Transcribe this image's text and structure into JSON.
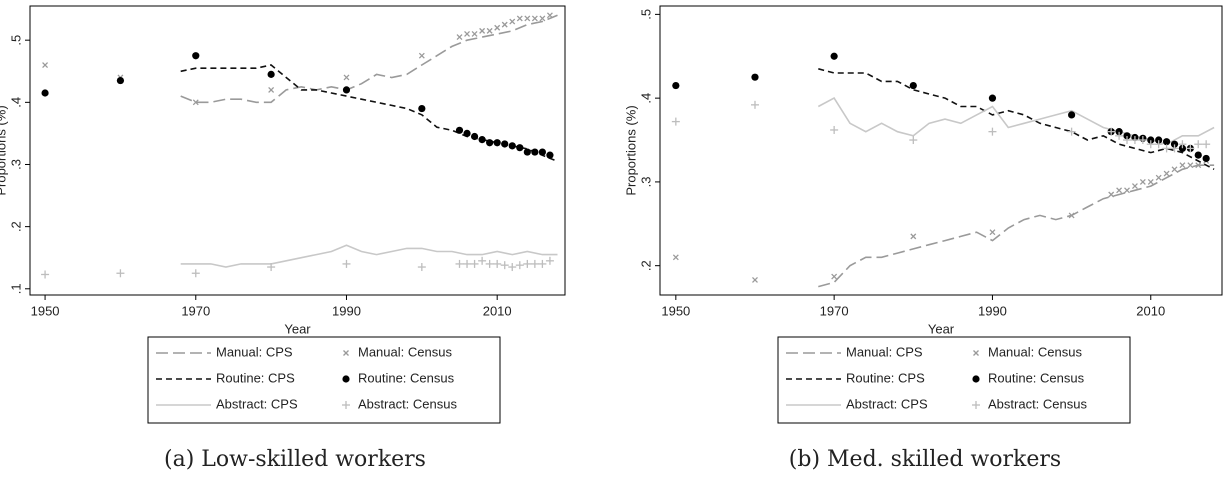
{
  "chart_data": [
    {
      "type": "line",
      "caption": "(a) Low-skilled workers",
      "xlabel": "Year",
      "ylabel": "Proportions (%)",
      "xlim": [
        1948,
        2019
      ],
      "xticks": [
        1950,
        1970,
        1990,
        2010
      ],
      "ylim": [
        0.09,
        0.555
      ],
      "yticks": [
        {
          "value": 0.1,
          "label": ".1"
        },
        {
          "value": 0.2,
          "label": ".2"
        },
        {
          "value": 0.3,
          "label": ".3"
        },
        {
          "value": 0.4,
          "label": ".4"
        },
        {
          "value": 0.5,
          "label": ".5"
        }
      ],
      "series": [
        {
          "name": "Manual: CPS",
          "color": "#9a9a9a",
          "dash": "long",
          "x": [
            1968,
            1970,
            1972,
            1974,
            1976,
            1978,
            1980,
            1982,
            1984,
            1986,
            1988,
            1990,
            1992,
            1994,
            1996,
            1998,
            2000,
            2002,
            2004,
            2006,
            2008,
            2010,
            2012,
            2014,
            2016,
            2018
          ],
          "values": [
            0.41,
            0.4,
            0.4,
            0.405,
            0.405,
            0.4,
            0.4,
            0.42,
            0.425,
            0.42,
            0.425,
            0.42,
            0.43,
            0.445,
            0.44,
            0.445,
            0.46,
            0.475,
            0.49,
            0.5,
            0.505,
            0.51,
            0.515,
            0.525,
            0.53,
            0.54
          ]
        },
        {
          "name": "Routine: CPS",
          "color": "#111111",
          "dash": "short",
          "x": [
            1968,
            1970,
            1972,
            1974,
            1976,
            1978,
            1980,
            1982,
            1984,
            1986,
            1988,
            1990,
            1992,
            1994,
            1996,
            1998,
            2000,
            2002,
            2004,
            2006,
            2008,
            2010,
            2012,
            2014,
            2016,
            2018
          ],
          "values": [
            0.45,
            0.455,
            0.455,
            0.455,
            0.455,
            0.455,
            0.46,
            0.44,
            0.42,
            0.42,
            0.415,
            0.41,
            0.405,
            0.4,
            0.395,
            0.39,
            0.38,
            0.36,
            0.355,
            0.345,
            0.34,
            0.335,
            0.33,
            0.325,
            0.315,
            0.305
          ]
        },
        {
          "name": "Abstract: CPS",
          "color": "#c8c8c8",
          "dash": "solid",
          "x": [
            1968,
            1970,
            1972,
            1974,
            1976,
            1978,
            1980,
            1982,
            1984,
            1986,
            1988,
            1990,
            1992,
            1994,
            1996,
            1998,
            2000,
            2002,
            2004,
            2006,
            2008,
            2010,
            2012,
            2014,
            2016,
            2018
          ],
          "values": [
            0.14,
            0.14,
            0.14,
            0.135,
            0.14,
            0.14,
            0.14,
            0.145,
            0.15,
            0.155,
            0.16,
            0.17,
            0.16,
            0.155,
            0.16,
            0.165,
            0.165,
            0.16,
            0.16,
            0.155,
            0.155,
            0.16,
            0.155,
            0.16,
            0.155,
            0.155
          ]
        },
        {
          "name": "Manual: Census",
          "color": "#9a9a9a",
          "marker": "x",
          "x": [
            1950,
            1960,
            1970,
            1980,
            1990,
            2000,
            2005,
            2006,
            2007,
            2008,
            2009,
            2010,
            2011,
            2012,
            2013,
            2014,
            2015,
            2016,
            2017
          ],
          "values": [
            0.46,
            0.44,
            0.4,
            0.42,
            0.44,
            0.475,
            0.505,
            0.51,
            0.51,
            0.515,
            0.515,
            0.52,
            0.525,
            0.53,
            0.535,
            0.535,
            0.535,
            0.535,
            0.54
          ]
        },
        {
          "name": "Routine: Census",
          "color": "#000000",
          "marker": "circle",
          "x": [
            1950,
            1960,
            1970,
            1980,
            1990,
            2000,
            2005,
            2006,
            2007,
            2008,
            2009,
            2010,
            2011,
            2012,
            2013,
            2014,
            2015,
            2016,
            2017
          ],
          "values": [
            0.415,
            0.435,
            0.475,
            0.445,
            0.42,
            0.39,
            0.355,
            0.35,
            0.345,
            0.34,
            0.335,
            0.335,
            0.333,
            0.33,
            0.327,
            0.32,
            0.32,
            0.32,
            0.315
          ]
        },
        {
          "name": "Abstract: Census",
          "color": "#bdbdbd",
          "marker": "plus",
          "x": [
            1950,
            1960,
            1970,
            1980,
            1990,
            2000,
            2005,
            2006,
            2007,
            2008,
            2009,
            2010,
            2011,
            2012,
            2013,
            2014,
            2015,
            2016,
            2017
          ],
          "values": [
            0.123,
            0.125,
            0.125,
            0.135,
            0.14,
            0.135,
            0.14,
            0.14,
            0.14,
            0.145,
            0.14,
            0.14,
            0.138,
            0.135,
            0.138,
            0.14,
            0.14,
            0.14,
            0.145
          ]
        }
      ]
    },
    {
      "type": "line",
      "caption": "(b) Med. skilled workers",
      "xlabel": "Year",
      "ylabel": "Proportions (%)",
      "xlim": [
        1948,
        2019
      ],
      "xticks": [
        1950,
        1970,
        1990,
        2010
      ],
      "ylim": [
        0.165,
        0.51
      ],
      "yticks": [
        {
          "value": 0.2,
          "label": ".2"
        },
        {
          "value": 0.3,
          "label": ".3"
        },
        {
          "value": 0.4,
          "label": ".4"
        },
        {
          "value": 0.5,
          "label": ".5"
        }
      ],
      "series": [
        {
          "name": "Manual: CPS",
          "color": "#9a9a9a",
          "dash": "long",
          "x": [
            1968,
            1970,
            1972,
            1974,
            1976,
            1978,
            1980,
            1982,
            1984,
            1986,
            1988,
            1990,
            1992,
            1994,
            1996,
            1998,
            2000,
            2002,
            2004,
            2006,
            2008,
            2010,
            2012,
            2014,
            2016,
            2018
          ],
          "values": [
            0.175,
            0.18,
            0.2,
            0.21,
            0.21,
            0.215,
            0.22,
            0.225,
            0.23,
            0.235,
            0.24,
            0.23,
            0.245,
            0.255,
            0.26,
            0.255,
            0.26,
            0.27,
            0.28,
            0.285,
            0.29,
            0.295,
            0.305,
            0.315,
            0.32,
            0.32
          ]
        },
        {
          "name": "Routine: CPS",
          "color": "#111111",
          "dash": "short",
          "x": [
            1968,
            1970,
            1972,
            1974,
            1976,
            1978,
            1980,
            1982,
            1984,
            1986,
            1988,
            1990,
            1992,
            1994,
            1996,
            1998,
            2000,
            2002,
            2004,
            2006,
            2008,
            2010,
            2012,
            2014,
            2016,
            2018
          ],
          "values": [
            0.435,
            0.43,
            0.43,
            0.43,
            0.42,
            0.42,
            0.41,
            0.405,
            0.4,
            0.39,
            0.39,
            0.38,
            0.385,
            0.38,
            0.37,
            0.365,
            0.36,
            0.35,
            0.355,
            0.345,
            0.34,
            0.335,
            0.34,
            0.335,
            0.325,
            0.315
          ]
        },
        {
          "name": "Abstract: CPS",
          "color": "#c8c8c8",
          "dash": "solid",
          "x": [
            1968,
            1970,
            1972,
            1974,
            1976,
            1978,
            1980,
            1982,
            1984,
            1986,
            1988,
            1990,
            1992,
            1994,
            1996,
            1998,
            2000,
            2002,
            2004,
            2006,
            2008,
            2010,
            2012,
            2014,
            2016,
            2018
          ],
          "values": [
            0.39,
            0.4,
            0.37,
            0.36,
            0.37,
            0.36,
            0.355,
            0.37,
            0.375,
            0.37,
            0.38,
            0.39,
            0.365,
            0.37,
            0.375,
            0.38,
            0.385,
            0.375,
            0.365,
            0.36,
            0.355,
            0.35,
            0.345,
            0.355,
            0.355,
            0.365
          ]
        },
        {
          "name": "Manual: Census",
          "color": "#9a9a9a",
          "marker": "x",
          "x": [
            1950,
            1960,
            1970,
            1980,
            1990,
            2000,
            2005,
            2006,
            2007,
            2008,
            2009,
            2010,
            2011,
            2012,
            2013,
            2014,
            2015,
            2016,
            2017
          ],
          "values": [
            0.21,
            0.183,
            0.187,
            0.235,
            0.24,
            0.26,
            0.285,
            0.29,
            0.29,
            0.295,
            0.3,
            0.3,
            0.305,
            0.31,
            0.315,
            0.32,
            0.32,
            0.32,
            0.325
          ]
        },
        {
          "name": "Routine: Census",
          "color": "#000000",
          "marker": "circle",
          "x": [
            1950,
            1960,
            1970,
            1980,
            1990,
            2000,
            2005,
            2006,
            2007,
            2008,
            2009,
            2010,
            2011,
            2012,
            2013,
            2014,
            2015,
            2016,
            2017
          ],
          "values": [
            0.415,
            0.425,
            0.45,
            0.415,
            0.4,
            0.38,
            0.36,
            0.36,
            0.355,
            0.353,
            0.352,
            0.35,
            0.35,
            0.348,
            0.345,
            0.34,
            0.34,
            0.332,
            0.328
          ]
        },
        {
          "name": "Abstract: Census",
          "color": "#bdbdbd",
          "marker": "plus",
          "x": [
            1950,
            1960,
            1970,
            1980,
            1990,
            2000,
            2005,
            2006,
            2007,
            2008,
            2009,
            2010,
            2011,
            2012,
            2013,
            2014,
            2015,
            2016,
            2017
          ],
          "values": [
            0.372,
            0.392,
            0.362,
            0.35,
            0.36,
            0.36,
            0.36,
            0.355,
            0.35,
            0.35,
            0.35,
            0.345,
            0.345,
            0.34,
            0.34,
            0.345,
            0.34,
            0.345,
            0.345
          ]
        }
      ]
    }
  ]
}
